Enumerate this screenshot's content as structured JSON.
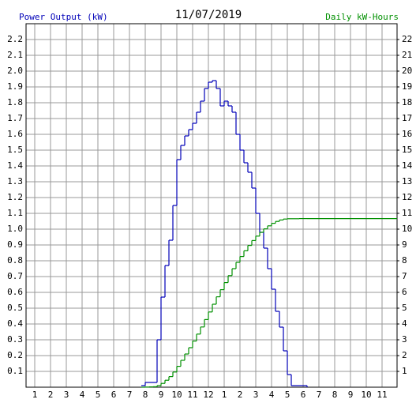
{
  "chart_data": {
    "type": "step",
    "title": "11/07/2019",
    "ylabel": "Power Output (kW)",
    "y2label": "Daily kW-Hours",
    "xlim": [
      0.45,
      23.95
    ],
    "xticks": [
      1,
      2,
      3,
      4,
      5,
      6,
      7,
      8,
      9,
      10,
      11,
      12,
      {
        "value": 13,
        "label": "1"
      },
      {
        "value": 14,
        "label": "2"
      },
      {
        "value": 15,
        "label": "3"
      },
      {
        "value": 16,
        "label": "4"
      },
      {
        "value": 17,
        "label": "5"
      },
      {
        "value": 18,
        "label": "6"
      },
      {
        "value": 19,
        "label": "7"
      },
      {
        "value": 20,
        "label": "8"
      },
      {
        "value": 21,
        "label": "9"
      },
      {
        "value": 22,
        "label": "10"
      },
      {
        "value": 23,
        "label": "11"
      }
    ],
    "ylim": [
      0,
      2.3
    ],
    "yticks": [
      0.1,
      0.2,
      0.3,
      0.4,
      0.5,
      0.6,
      0.7,
      0.8,
      0.9,
      {
        "value": 1,
        "label": "1.0"
      },
      1.1,
      1.2,
      1.3,
      1.4,
      1.5,
      1.6,
      1.7,
      1.8,
      1.9,
      {
        "value": 2,
        "label": "2.0"
      },
      2.1,
      2.2
    ],
    "y2lim": [
      0,
      23
    ],
    "y2ticks": [
      1,
      2,
      3,
      4,
      5,
      6,
      7,
      8,
      9,
      10,
      11,
      12,
      13,
      14,
      15,
      16,
      17,
      18,
      19,
      20,
      21,
      22
    ],
    "grid": true,
    "series": [
      {
        "name": "Power Output (kW)",
        "color": "#0000b8",
        "x": [
          7.75,
          8,
          8.25,
          8.5,
          8.75,
          9,
          9.25,
          9.5,
          9.75,
          10,
          10.25,
          10.5,
          10.75,
          11,
          11.25,
          11.5,
          11.75,
          12,
          12.25,
          12.5,
          12.75,
          13,
          13.25,
          13.5,
          13.75,
          14,
          14.25,
          14.5,
          14.75,
          15,
          15.25,
          15.5,
          15.75,
          16,
          16.25,
          16.5,
          16.75,
          17,
          17.25,
          17.5,
          17.75,
          18,
          18.25
        ],
        "values": [
          0.01,
          0.03,
          0.03,
          0.03,
          0.3,
          0.57,
          0.77,
          0.93,
          1.15,
          1.44,
          1.53,
          1.59,
          1.63,
          1.67,
          1.74,
          1.81,
          1.89,
          1.93,
          1.94,
          1.89,
          1.78,
          1.81,
          1.78,
          1.74,
          1.6,
          1.5,
          1.42,
          1.36,
          1.26,
          1.1,
          0.98,
          0.88,
          0.75,
          0.62,
          0.48,
          0.38,
          0.23,
          0.08,
          0.01,
          0.01,
          0.01,
          0.01,
          0
        ]
      },
      {
        "name": "Daily kW-Hours",
        "color": "#009000",
        "axis": "y2",
        "x": [
          7.75,
          8,
          8.25,
          8.5,
          8.75,
          9,
          9.25,
          9.5,
          9.75,
          10,
          10.25,
          10.5,
          10.75,
          11,
          11.25,
          11.5,
          11.75,
          12,
          12.25,
          12.5,
          12.75,
          13,
          13.25,
          13.5,
          13.75,
          14,
          14.25,
          14.5,
          14.75,
          15,
          15.25,
          15.5,
          15.75,
          16,
          16.25,
          16.5,
          16.75,
          17,
          17.25,
          17.5,
          17.75,
          18,
          18.25,
          23.95
        ],
        "values": [
          0,
          0.01,
          0.02,
          0.03,
          0.1,
          0.24,
          0.44,
          0.67,
          0.96,
          1.32,
          1.7,
          2.1,
          2.5,
          2.92,
          3.36,
          3.81,
          4.28,
          4.76,
          5.25,
          5.72,
          6.17,
          6.62,
          7.06,
          7.5,
          7.9,
          8.27,
          8.63,
          8.97,
          9.28,
          9.56,
          9.8,
          10.02,
          10.21,
          10.37,
          10.49,
          10.58,
          10.64,
          10.66,
          10.66,
          10.66,
          10.67,
          10.67,
          10.67,
          10.67
        ]
      }
    ]
  }
}
